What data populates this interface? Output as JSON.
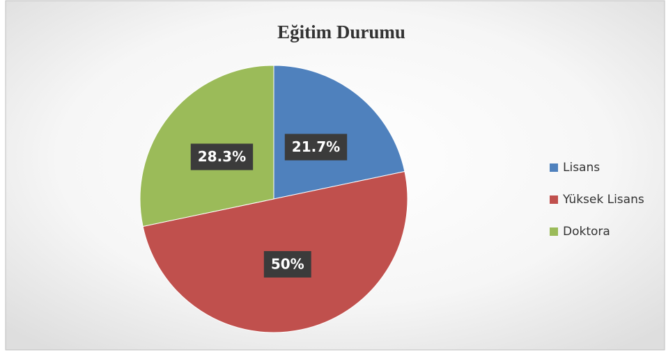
{
  "chart_data": {
    "type": "pie",
    "title": "Eğitim Durumu",
    "categories": [
      "Lisans",
      "Yüksek Lisans",
      "Doktora"
    ],
    "values": [
      21.7,
      50,
      28.3
    ],
    "value_labels": [
      "21.7%",
      "50%",
      "28.3%"
    ],
    "colors": [
      "#4f81bd",
      "#c0504d",
      "#9bbb59"
    ],
    "legend": "right"
  }
}
